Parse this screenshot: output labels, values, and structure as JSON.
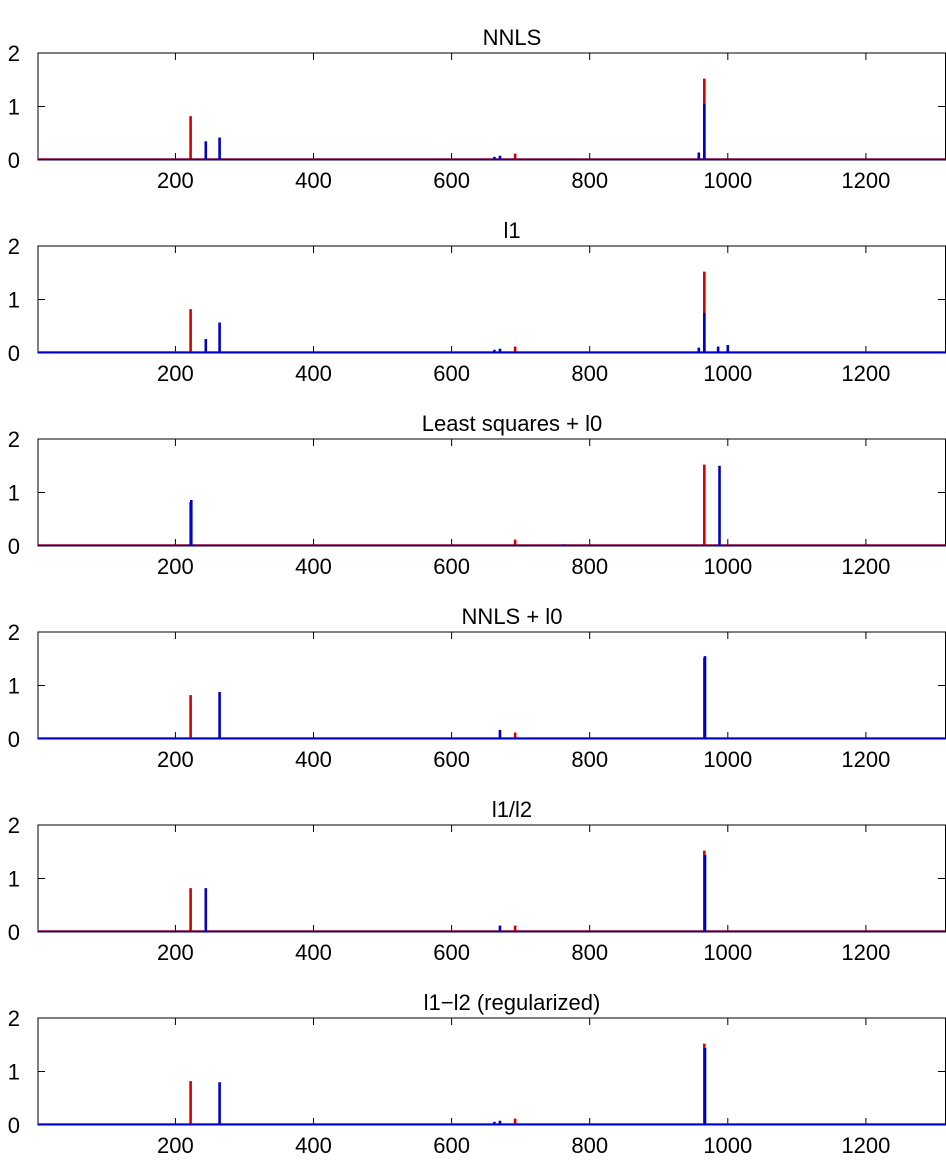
{
  "chart_data": [
    {
      "type": "bar",
      "title": "NNLS",
      "xlabel": "",
      "ylabel": "",
      "xlim": [
        1,
        1316
      ],
      "ylim": [
        0,
        2
      ],
      "xticks": [
        200,
        400,
        600,
        800,
        1000,
        1200
      ],
      "yticks": [
        0,
        1,
        2
      ],
      "grid": false,
      "series": [
        {
          "color": "#d40000",
          "x": [
            222,
            692,
            966
          ],
          "values": [
            0.82,
            0.12,
            1.52
          ]
        },
        {
          "color": "#0000c8",
          "x": [
            150,
            244,
            264,
            444,
            584,
            662,
            670,
            958,
            966
          ],
          "values": [
            0.01,
            0.35,
            0.42,
            0.01,
            0.02,
            0.06,
            0.08,
            0.14,
            1.05
          ]
        }
      ]
    },
    {
      "type": "bar",
      "title": "l1",
      "xlabel": "",
      "ylabel": "",
      "xlim": [
        1,
        1316
      ],
      "ylim": [
        0,
        2
      ],
      "xticks": [
        200,
        400,
        600,
        800,
        1000,
        1200
      ],
      "yticks": [
        0,
        1,
        2
      ],
      "grid": false,
      "series": [
        {
          "color": "#d40000",
          "x": [
            222,
            692,
            966
          ],
          "values": [
            0.82,
            0.12,
            1.52
          ]
        },
        {
          "color": "#0000c8",
          "x": [
            244,
            264,
            662,
            670,
            958,
            966,
            986,
            1000
          ],
          "values": [
            0.26,
            0.57,
            0.06,
            0.08,
            0.1,
            0.75,
            0.12,
            0.15
          ]
        }
      ]
    },
    {
      "type": "bar",
      "title": "Least squares + l0",
      "xlabel": "",
      "ylabel": "",
      "xlim": [
        1,
        1316
      ],
      "ylim": [
        0,
        2
      ],
      "xticks": [
        200,
        400,
        600,
        800,
        1000,
        1200
      ],
      "yticks": [
        0,
        1,
        2
      ],
      "grid": false,
      "series": [
        {
          "color": "#d40000",
          "x": [
            222,
            692,
            966
          ],
          "values": [
            0.82,
            0.12,
            1.52
          ]
        },
        {
          "color": "#0000c8",
          "x": [
            223,
            762,
            988
          ],
          "values": [
            0.86,
            0.03,
            1.5
          ]
        }
      ]
    },
    {
      "type": "bar",
      "title": "NNLS + l0",
      "xlabel": "",
      "ylabel": "",
      "xlim": [
        1,
        1316
      ],
      "ylim": [
        0,
        2
      ],
      "xticks": [
        200,
        400,
        600,
        800,
        1000,
        1200
      ],
      "yticks": [
        0,
        1,
        2
      ],
      "grid": false,
      "series": [
        {
          "color": "#d40000",
          "x": [
            222,
            692,
            966
          ],
          "values": [
            0.82,
            0.12,
            1.52
          ]
        },
        {
          "color": "#0000c8",
          "x": [
            264,
            670,
            967
          ],
          "values": [
            0.88,
            0.17,
            1.55
          ]
        }
      ]
    },
    {
      "type": "bar",
      "title": "l1/l2",
      "xlabel": "",
      "ylabel": "",
      "xlim": [
        1,
        1316
      ],
      "ylim": [
        0,
        2
      ],
      "xticks": [
        200,
        400,
        600,
        800,
        1000,
        1200
      ],
      "yticks": [
        0,
        1,
        2
      ],
      "grid": false,
      "series": [
        {
          "color": "#d40000",
          "x": [
            222,
            692,
            966
          ],
          "values": [
            0.82,
            0.12,
            1.52
          ]
        },
        {
          "color": "#0000c8",
          "x": [
            244,
            670,
            967
          ],
          "values": [
            0.82,
            0.12,
            1.44
          ]
        }
      ]
    },
    {
      "type": "bar",
      "title": "l1−l2 (regularized)",
      "xlabel": "",
      "ylabel": "",
      "xlim": [
        1,
        1316
      ],
      "ylim": [
        0,
        2
      ],
      "xticks": [
        200,
        400,
        600,
        800,
        1000,
        1200
      ],
      "yticks": [
        0,
        1,
        2
      ],
      "grid": false,
      "series": [
        {
          "color": "#d40000",
          "x": [
            222,
            692,
            966
          ],
          "values": [
            0.82,
            0.12,
            1.52
          ]
        },
        {
          "color": "#0000c8",
          "x": [
            264,
            662,
            670,
            967
          ],
          "values": [
            0.8,
            0.06,
            0.08,
            1.44
          ]
        }
      ]
    }
  ]
}
